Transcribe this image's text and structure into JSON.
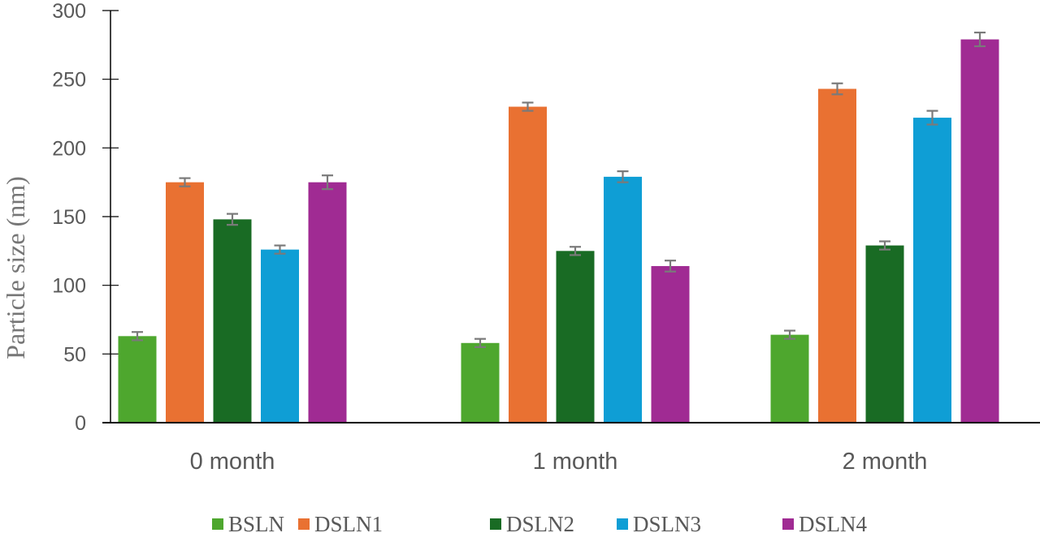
{
  "chart_data": {
    "type": "bar",
    "title": "",
    "xlabel": "",
    "ylabel": "Particle size (nm)",
    "ylim": [
      0,
      300
    ],
    "yticks": [
      0,
      50,
      100,
      150,
      200,
      250,
      300
    ],
    "grid": false,
    "legend_position": "bottom",
    "error_bars": true,
    "categories": [
      "0 month",
      "1 month",
      "2 month"
    ],
    "series": [
      {
        "name": "BSLN",
        "color": "#4EA72E",
        "values": [
          63,
          58,
          64
        ],
        "errors": [
          3,
          3,
          3
        ]
      },
      {
        "name": "DSLN1",
        "color": "#E97132",
        "values": [
          175,
          230,
          243
        ],
        "errors": [
          3,
          3,
          4
        ]
      },
      {
        "name": "DSLN2",
        "color": "#196B24",
        "values": [
          148,
          125,
          129
        ],
        "errors": [
          4,
          3,
          3
        ]
      },
      {
        "name": "DSLN3",
        "color": "#0F9ED5",
        "values": [
          126,
          179,
          222
        ],
        "errors": [
          3,
          4,
          5
        ]
      },
      {
        "name": "DSLN4",
        "color": "#A02B93",
        "values": [
          175,
          114,
          279
        ],
        "errors": [
          5,
          4,
          5
        ]
      }
    ]
  }
}
